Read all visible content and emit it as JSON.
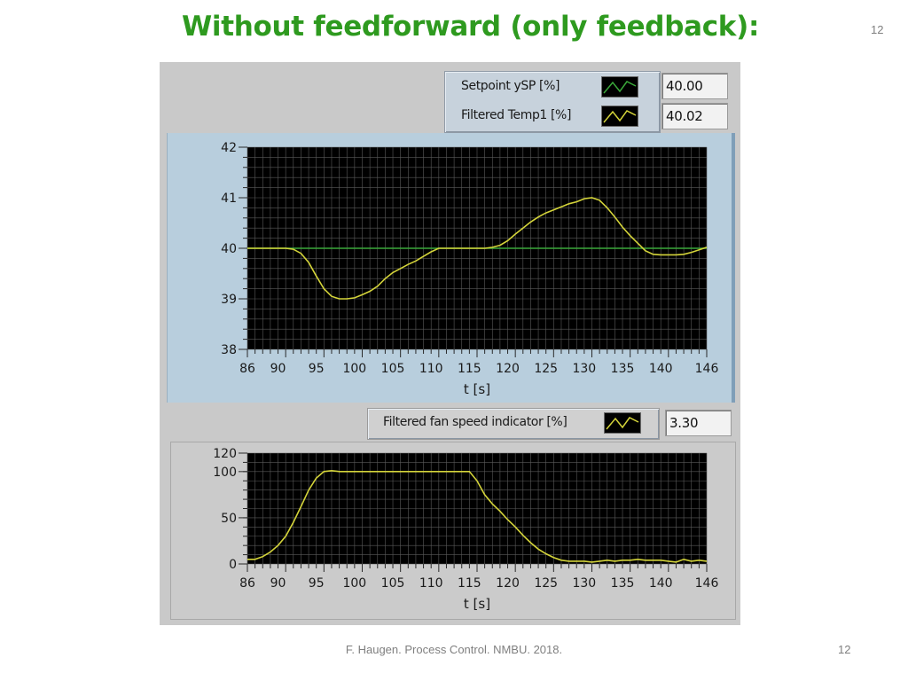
{
  "slide": {
    "title": "Without feedforward (only feedback):",
    "page_number_top": "12",
    "footer": "F. Haugen. Process Control. NMBU. 2018.",
    "page_number_bottom": "12"
  },
  "colors": {
    "title": "#2e9a1f",
    "plot_bg": "#000000",
    "grid": "#5a5a5a",
    "setpoint_line": "#3aa83a",
    "filtered_line": "#d4d43a",
    "fan_line": "#d4d43a"
  },
  "legend_top": {
    "items": [
      {
        "label": "Setpoint ySP [%]",
        "value": "40.00",
        "swatch_color": "#3aa83a"
      },
      {
        "label": "Filtered Temp1 [%]",
        "value": "40.02",
        "swatch_color": "#d4d43a"
      }
    ]
  },
  "legend_bottom": {
    "items": [
      {
        "label": "Filtered fan speed indicator [%]",
        "value": "3.30",
        "swatch_color": "#d4d43a"
      }
    ]
  },
  "chart_data": [
    {
      "type": "line",
      "title": "",
      "xlabel": "t [s]",
      "ylabel": "",
      "xlim": [
        86,
        146
      ],
      "ylim": [
        38,
        42
      ],
      "x_ticks": [
        86,
        90,
        95,
        100,
        105,
        110,
        115,
        120,
        125,
        130,
        135,
        140,
        146
      ],
      "y_ticks": [
        38,
        39,
        40,
        41,
        42
      ],
      "grid": true,
      "series": [
        {
          "name": "Setpoint ySP [%]",
          "color": "#3aa83a",
          "x": [
            86,
            146
          ],
          "y": [
            40,
            40
          ]
        },
        {
          "name": "Filtered Temp1 [%]",
          "color": "#d4d43a",
          "x": [
            86,
            91,
            92,
            93,
            94,
            95,
            96,
            97,
            98,
            99,
            100,
            101,
            102,
            103,
            104,
            105,
            106,
            107,
            108,
            109,
            110,
            111,
            112,
            113,
            114,
            115,
            116,
            117,
            118,
            119,
            120,
            121,
            122,
            123,
            124,
            125,
            126,
            127,
            128,
            129,
            130,
            131,
            132,
            133,
            134,
            135,
            136,
            137,
            138,
            139,
            140,
            141,
            142,
            143,
            144,
            145,
            146
          ],
          "y": [
            40,
            40,
            39.98,
            39.9,
            39.72,
            39.45,
            39.2,
            39.05,
            39.0,
            39.0,
            39.02,
            39.08,
            39.15,
            39.25,
            39.4,
            39.52,
            39.6,
            39.68,
            39.75,
            39.84,
            39.93,
            40.0,
            40.0,
            40.0,
            40.0,
            40.0,
            40.0,
            40.0,
            40.02,
            40.06,
            40.15,
            40.28,
            40.4,
            40.52,
            40.62,
            40.7,
            40.76,
            40.82,
            40.88,
            40.92,
            40.98,
            41.0,
            40.95,
            40.8,
            40.62,
            40.42,
            40.25,
            40.1,
            39.95,
            39.88,
            39.87,
            39.87,
            39.87,
            39.88,
            39.92,
            39.97,
            40.02
          ]
        }
      ]
    },
    {
      "type": "line",
      "title": "",
      "xlabel": "t [s]",
      "ylabel": "",
      "xlim": [
        86,
        146
      ],
      "ylim": [
        0,
        120
      ],
      "x_ticks": [
        86,
        90,
        95,
        100,
        105,
        110,
        115,
        120,
        125,
        130,
        135,
        140,
        146
      ],
      "y_ticks": [
        0,
        50,
        100,
        120
      ],
      "grid": true,
      "series": [
        {
          "name": "Filtered fan speed indicator [%]",
          "color": "#d4d43a",
          "x": [
            86,
            87,
            88,
            89,
            90,
            91,
            92,
            93,
            94,
            95,
            96,
            97,
            98,
            100,
            105,
            110,
            115,
            116,
            117,
            118,
            119,
            120,
            121,
            122,
            123,
            124,
            125,
            126,
            127,
            128,
            129,
            130,
            131,
            132,
            133,
            134,
            135,
            136,
            137,
            138,
            139,
            140,
            141,
            142,
            143,
            144,
            145,
            146
          ],
          "y": [
            5,
            5,
            8,
            13,
            20,
            30,
            45,
            62,
            80,
            93,
            100,
            101,
            100,
            100,
            100,
            100,
            100,
            90,
            75,
            65,
            57,
            48,
            40,
            31,
            23,
            16,
            11,
            7,
            4,
            3,
            3,
            3,
            2,
            3,
            4,
            3,
            4,
            4,
            5,
            4,
            4,
            4,
            3,
            2,
            5,
            3,
            4,
            3
          ]
        }
      ]
    }
  ]
}
